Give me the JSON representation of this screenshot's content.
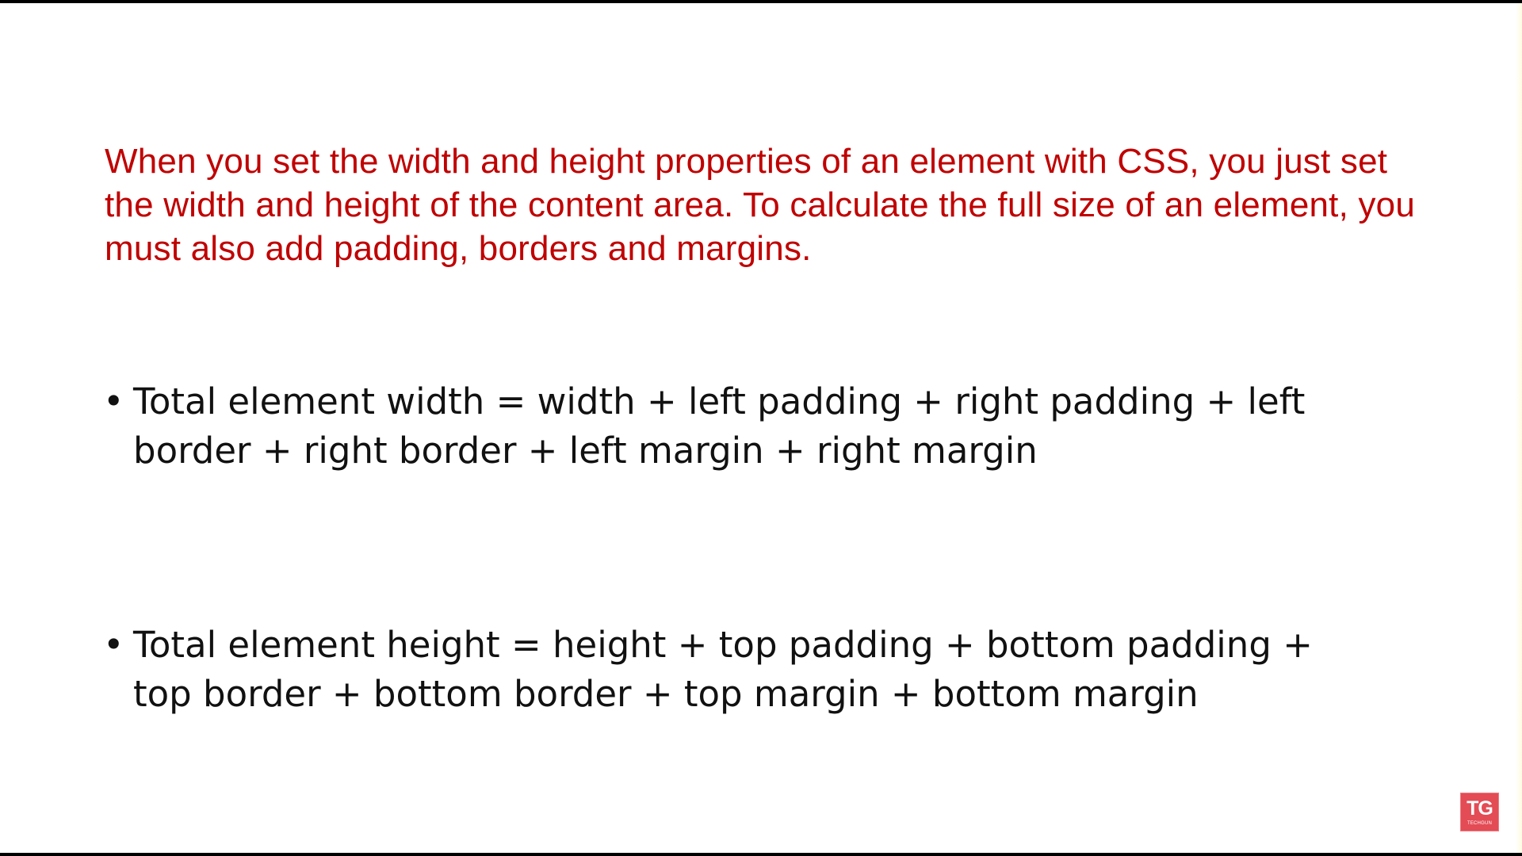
{
  "slide": {
    "intro_text": "When you set the width and height properties of an element with CSS, you just set the width and height of the content area. To calculate the full size of an element, you must also add padding, borders and margins.",
    "bullet_symbol": "•",
    "bullets": [
      {
        "text": "Total element width = width + left padding + right padding + left border + right border + left margin + right margin"
      },
      {
        "text": "Total element height = height + top padding + bottom padding + top border + bottom border + top margin + bottom margin"
      }
    ]
  },
  "logo": {
    "mark": "TG",
    "subtext": "TECHGUN"
  },
  "colors": {
    "intro": "#c00000",
    "body_text": "#111111",
    "background": "#ffffff",
    "logo_bg": "#e34b55"
  }
}
